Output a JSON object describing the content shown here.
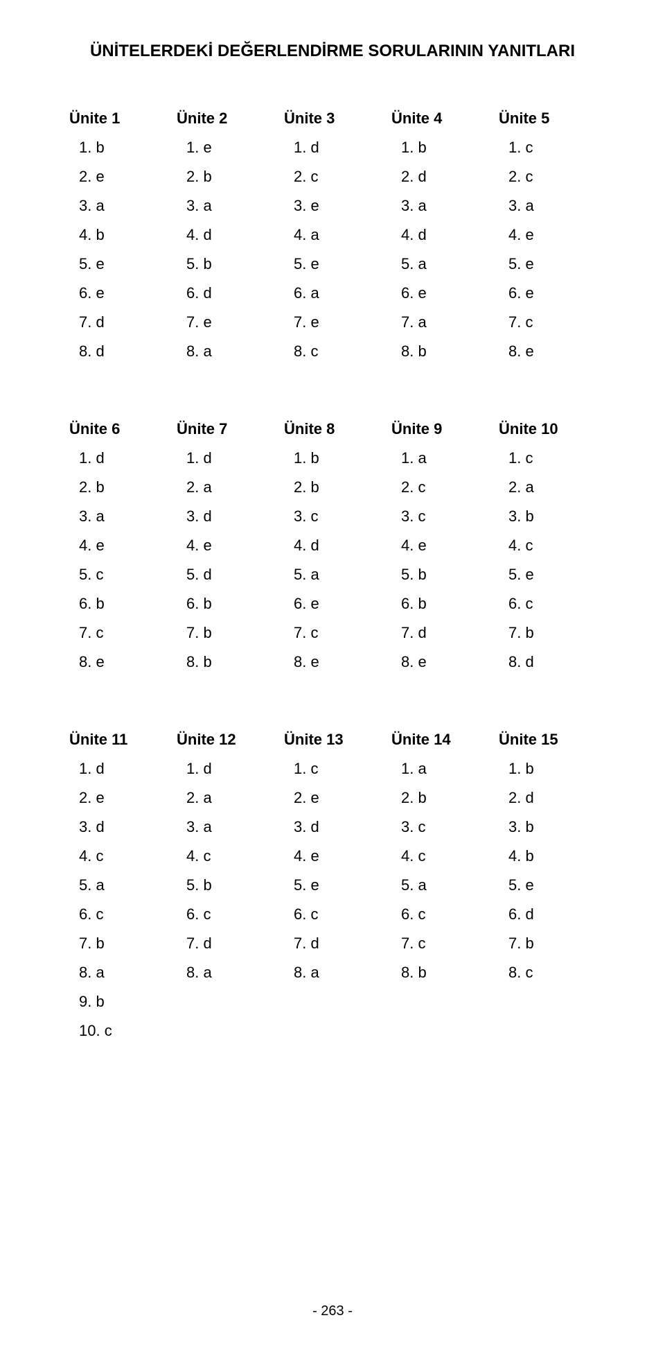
{
  "title": "ÜNİTELERDEKİ DEĞERLENDİRME SORULARININ YANITLARI",
  "page_number": "- 263 -",
  "text_color": "#000000",
  "background_color": "#ffffff",
  "title_fontsize": 24,
  "header_fontsize": 22,
  "body_fontsize": 22,
  "blocks": [
    {
      "units": [
        {
          "header": "Ünite 1",
          "answers": [
            "1. b",
            "2. e",
            "3. a",
            "4. b",
            "5. e",
            "6. e",
            "7. d",
            "8. d"
          ]
        },
        {
          "header": "Ünite 2",
          "answers": [
            "1. e",
            "2. b",
            "3. a",
            "4. d",
            "5. b",
            "6. d",
            "7. e",
            "8. a"
          ]
        },
        {
          "header": "Ünite 3",
          "answers": [
            "1. d",
            "2. c",
            "3. e",
            "4. a",
            "5. e",
            "6. a",
            "7. e",
            "8. c"
          ]
        },
        {
          "header": "Ünite 4",
          "answers": [
            "1. b",
            "2. d",
            "3. a",
            "4. d",
            "5. a",
            "6. e",
            "7. a",
            "8. b"
          ]
        },
        {
          "header": "Ünite 5",
          "answers": [
            "1. c",
            "2. c",
            "3. a",
            "4. e",
            "5. e",
            "6. e",
            "7. c",
            "8. e"
          ]
        }
      ]
    },
    {
      "units": [
        {
          "header": "Ünite 6",
          "answers": [
            "1. d",
            "2. b",
            "3. a",
            "4. e",
            "5. c",
            "6. b",
            "7. c",
            "8. e"
          ]
        },
        {
          "header": "Ünite 7",
          "answers": [
            "1. d",
            "2. a",
            "3. d",
            "4. e",
            "5. d",
            "6. b",
            "7. b",
            "8. b"
          ]
        },
        {
          "header": "Ünite 8",
          "answers": [
            "1. b",
            "2. b",
            "3. c",
            "4. d",
            "5. a",
            "6. e",
            "7. c",
            "8. e"
          ]
        },
        {
          "header": "Ünite 9",
          "answers": [
            "1. a",
            "2. c",
            "3. c",
            "4. e",
            "5. b",
            "6. b",
            "7. d",
            "8. e"
          ]
        },
        {
          "header": "Ünite 10",
          "answers": [
            "1. c",
            "2. a",
            "3. b",
            "4. c",
            "5. e",
            "6. c",
            "7. b",
            "8. d"
          ]
        }
      ]
    },
    {
      "units": [
        {
          "header": "Ünite 11",
          "answers": [
            "1. d",
            "2. e",
            "3. d",
            "4. c",
            "5. a",
            "6. c",
            "7. b",
            "8. a",
            "9. b",
            "10. c"
          ]
        },
        {
          "header": "Ünite 12",
          "answers": [
            "1. d",
            "2. a",
            "3. a",
            "4. c",
            "5. b",
            "6. c",
            "7. d",
            "8. a"
          ]
        },
        {
          "header": "Ünite 13",
          "answers": [
            "1. c",
            "2. e",
            "3. d",
            "4. e",
            "5. e",
            "6. c",
            "7. d",
            "8. a"
          ]
        },
        {
          "header": "Ünite 14",
          "answers": [
            "1. a",
            "2. b",
            "3. c",
            "4. c",
            "5. a",
            "6. c",
            "7. c",
            "8. b"
          ]
        },
        {
          "header": "Ünite 15",
          "answers": [
            "1. b",
            "2. d",
            "3. b",
            "4. b",
            "5. e",
            "6. d",
            "7. b",
            "8. c"
          ]
        }
      ]
    }
  ]
}
